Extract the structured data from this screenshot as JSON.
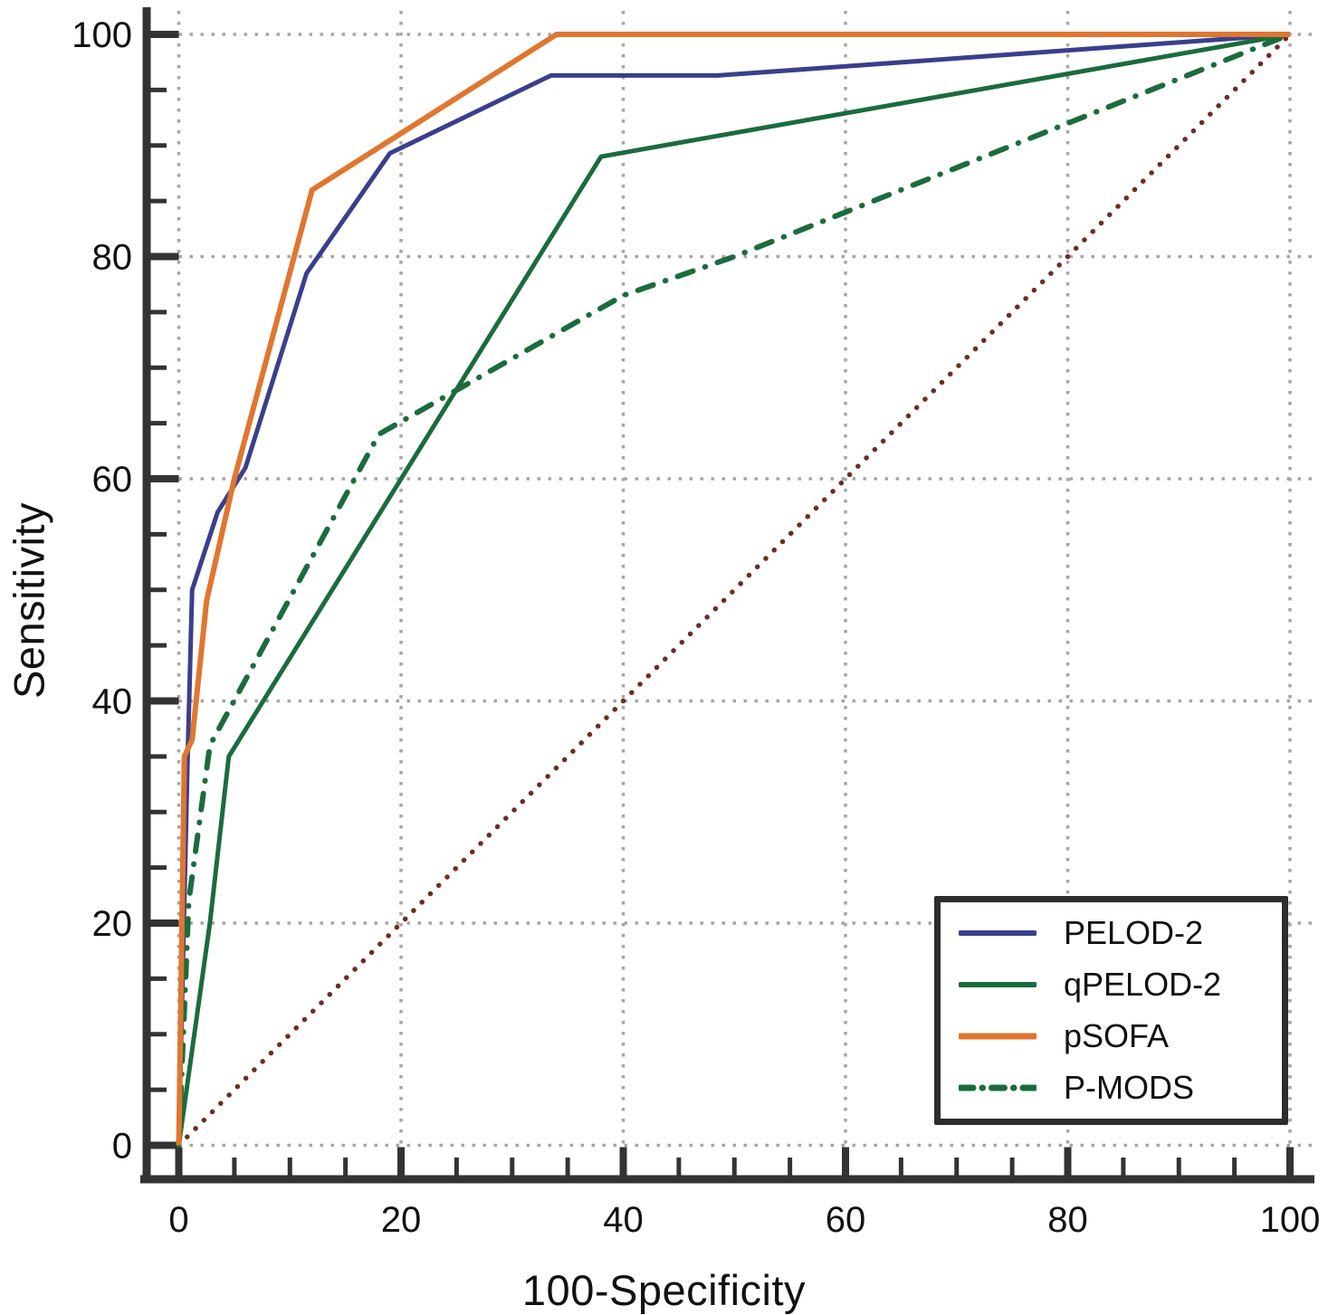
{
  "figure": {
    "background": "#ffffff"
  },
  "chart_data": {
    "type": "line",
    "subtype": "roc-curves",
    "title": "",
    "xlabel": "100-Specificity",
    "ylabel": "Sensitivity",
    "xlim": [
      0,
      100
    ],
    "ylim": [
      0,
      100
    ],
    "x_ticks": [
      0,
      20,
      40,
      60,
      80,
      100
    ],
    "y_ticks": [
      0,
      20,
      40,
      60,
      80,
      100
    ],
    "minor_tick_step": 5,
    "grid": "dotted",
    "grid_color": "#a5a5a5",
    "axis_color": "#333333",
    "text_color": "#111111",
    "legend_position": "bottom-right",
    "series": [
      {
        "name": "PELOD-2",
        "color": "#3a3f8c",
        "style": "solid",
        "width": 5,
        "points": [
          [
            0,
            0
          ],
          [
            0.8,
            35
          ],
          [
            1.2,
            50
          ],
          [
            3.5,
            57
          ],
          [
            6,
            61
          ],
          [
            11.5,
            78.5
          ],
          [
            19,
            89.3
          ],
          [
            33.5,
            96.3
          ],
          [
            48.5,
            96.3
          ],
          [
            100,
            100
          ]
        ]
      },
      {
        "name": "qPELOD-2",
        "color": "#1b6c3d",
        "style": "solid",
        "width": 5,
        "points": [
          [
            0,
            0
          ],
          [
            2.8,
            20
          ],
          [
            4.5,
            35
          ],
          [
            38,
            89
          ],
          [
            100,
            100
          ]
        ]
      },
      {
        "name": "pSOFA",
        "color": "#e0762f",
        "style": "solid",
        "width": 6,
        "points": [
          [
            0,
            0
          ],
          [
            0.5,
            35
          ],
          [
            1.2,
            36.5
          ],
          [
            2.5,
            49
          ],
          [
            5,
            60
          ],
          [
            12,
            86
          ],
          [
            34,
            100
          ],
          [
            100,
            100
          ]
        ]
      },
      {
        "name": "P-MODS",
        "color": "#1b6c3d",
        "style": "dashdot",
        "width": 6,
        "points": [
          [
            0,
            0
          ],
          [
            0.9,
            22
          ],
          [
            2.8,
            36
          ],
          [
            18,
            64
          ],
          [
            40,
            76.5
          ],
          [
            50,
            80
          ],
          [
            100,
            100
          ]
        ]
      }
    ],
    "reference_line": {
      "name": "chance-diagonal",
      "color": "#6b2d24",
      "style": "dotted",
      "width": 5.5,
      "points": [
        [
          0,
          0
        ],
        [
          100,
          100
        ]
      ]
    }
  }
}
